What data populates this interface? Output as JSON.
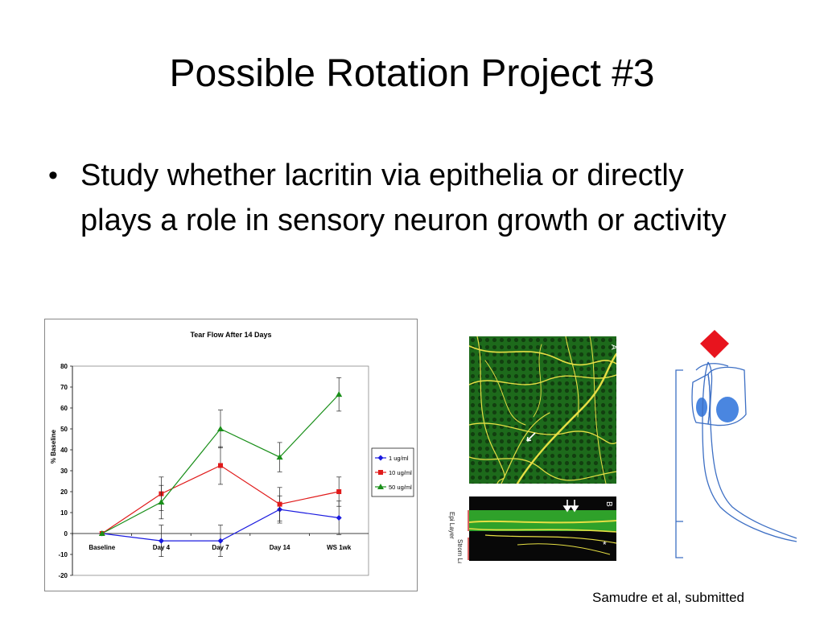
{
  "slide": {
    "title": "Possible Rotation Project #3",
    "bullet": "Study whether lacritin via epithelia or directly plays a role in sensory neuron growth or activity",
    "citation": "Samudre et al, submitted"
  },
  "micrograph": {
    "panel_a_letter": "A",
    "panel_b_letter": "B",
    "epi_label": "Epi Layer",
    "strom_label": "Strom Laye",
    "asterisk": "*",
    "colors": {
      "tissue": "#1f6f1c",
      "nerves": "#e7e04a",
      "band": "#0b0b0b"
    }
  },
  "diagram": {
    "colors": {
      "stimulus": "#e8141e",
      "cells": "#3d6fc4",
      "nuclei": "#4a86e0"
    }
  },
  "chart_data": {
    "type": "line",
    "title": "Tear Flow After 14 Days",
    "xlabel": "",
    "ylabel": "% Baseline",
    "categories": [
      "Baseline",
      "Day 4",
      "Day 7",
      "Day 14",
      "WS 1wk"
    ],
    "ylim": [
      -20,
      80
    ],
    "yticks": [
      -20,
      -10,
      0,
      10,
      20,
      30,
      40,
      50,
      60,
      70,
      80
    ],
    "grid": false,
    "legend_position": "right",
    "series": [
      {
        "name": "1 ug/ml",
        "color": "#1a1adf",
        "marker": "diamond",
        "values": [
          0,
          -3.5,
          -3.5,
          11.5,
          7.5
        ],
        "errors": [
          0,
          7.5,
          7.5,
          6.5,
          8
        ]
      },
      {
        "name": "10 ug/ml",
        "color": "#e01a1a",
        "marker": "square",
        "values": [
          0,
          19,
          32.5,
          14,
          20
        ],
        "errors": [
          0,
          8,
          9,
          8,
          7
        ]
      },
      {
        "name": "50 ug/ml",
        "color": "#1a8f1a",
        "marker": "triangle",
        "values": [
          0,
          15,
          50,
          36.5,
          66.5
        ],
        "errors": [
          0,
          8,
          9,
          7,
          8
        ]
      }
    ]
  }
}
